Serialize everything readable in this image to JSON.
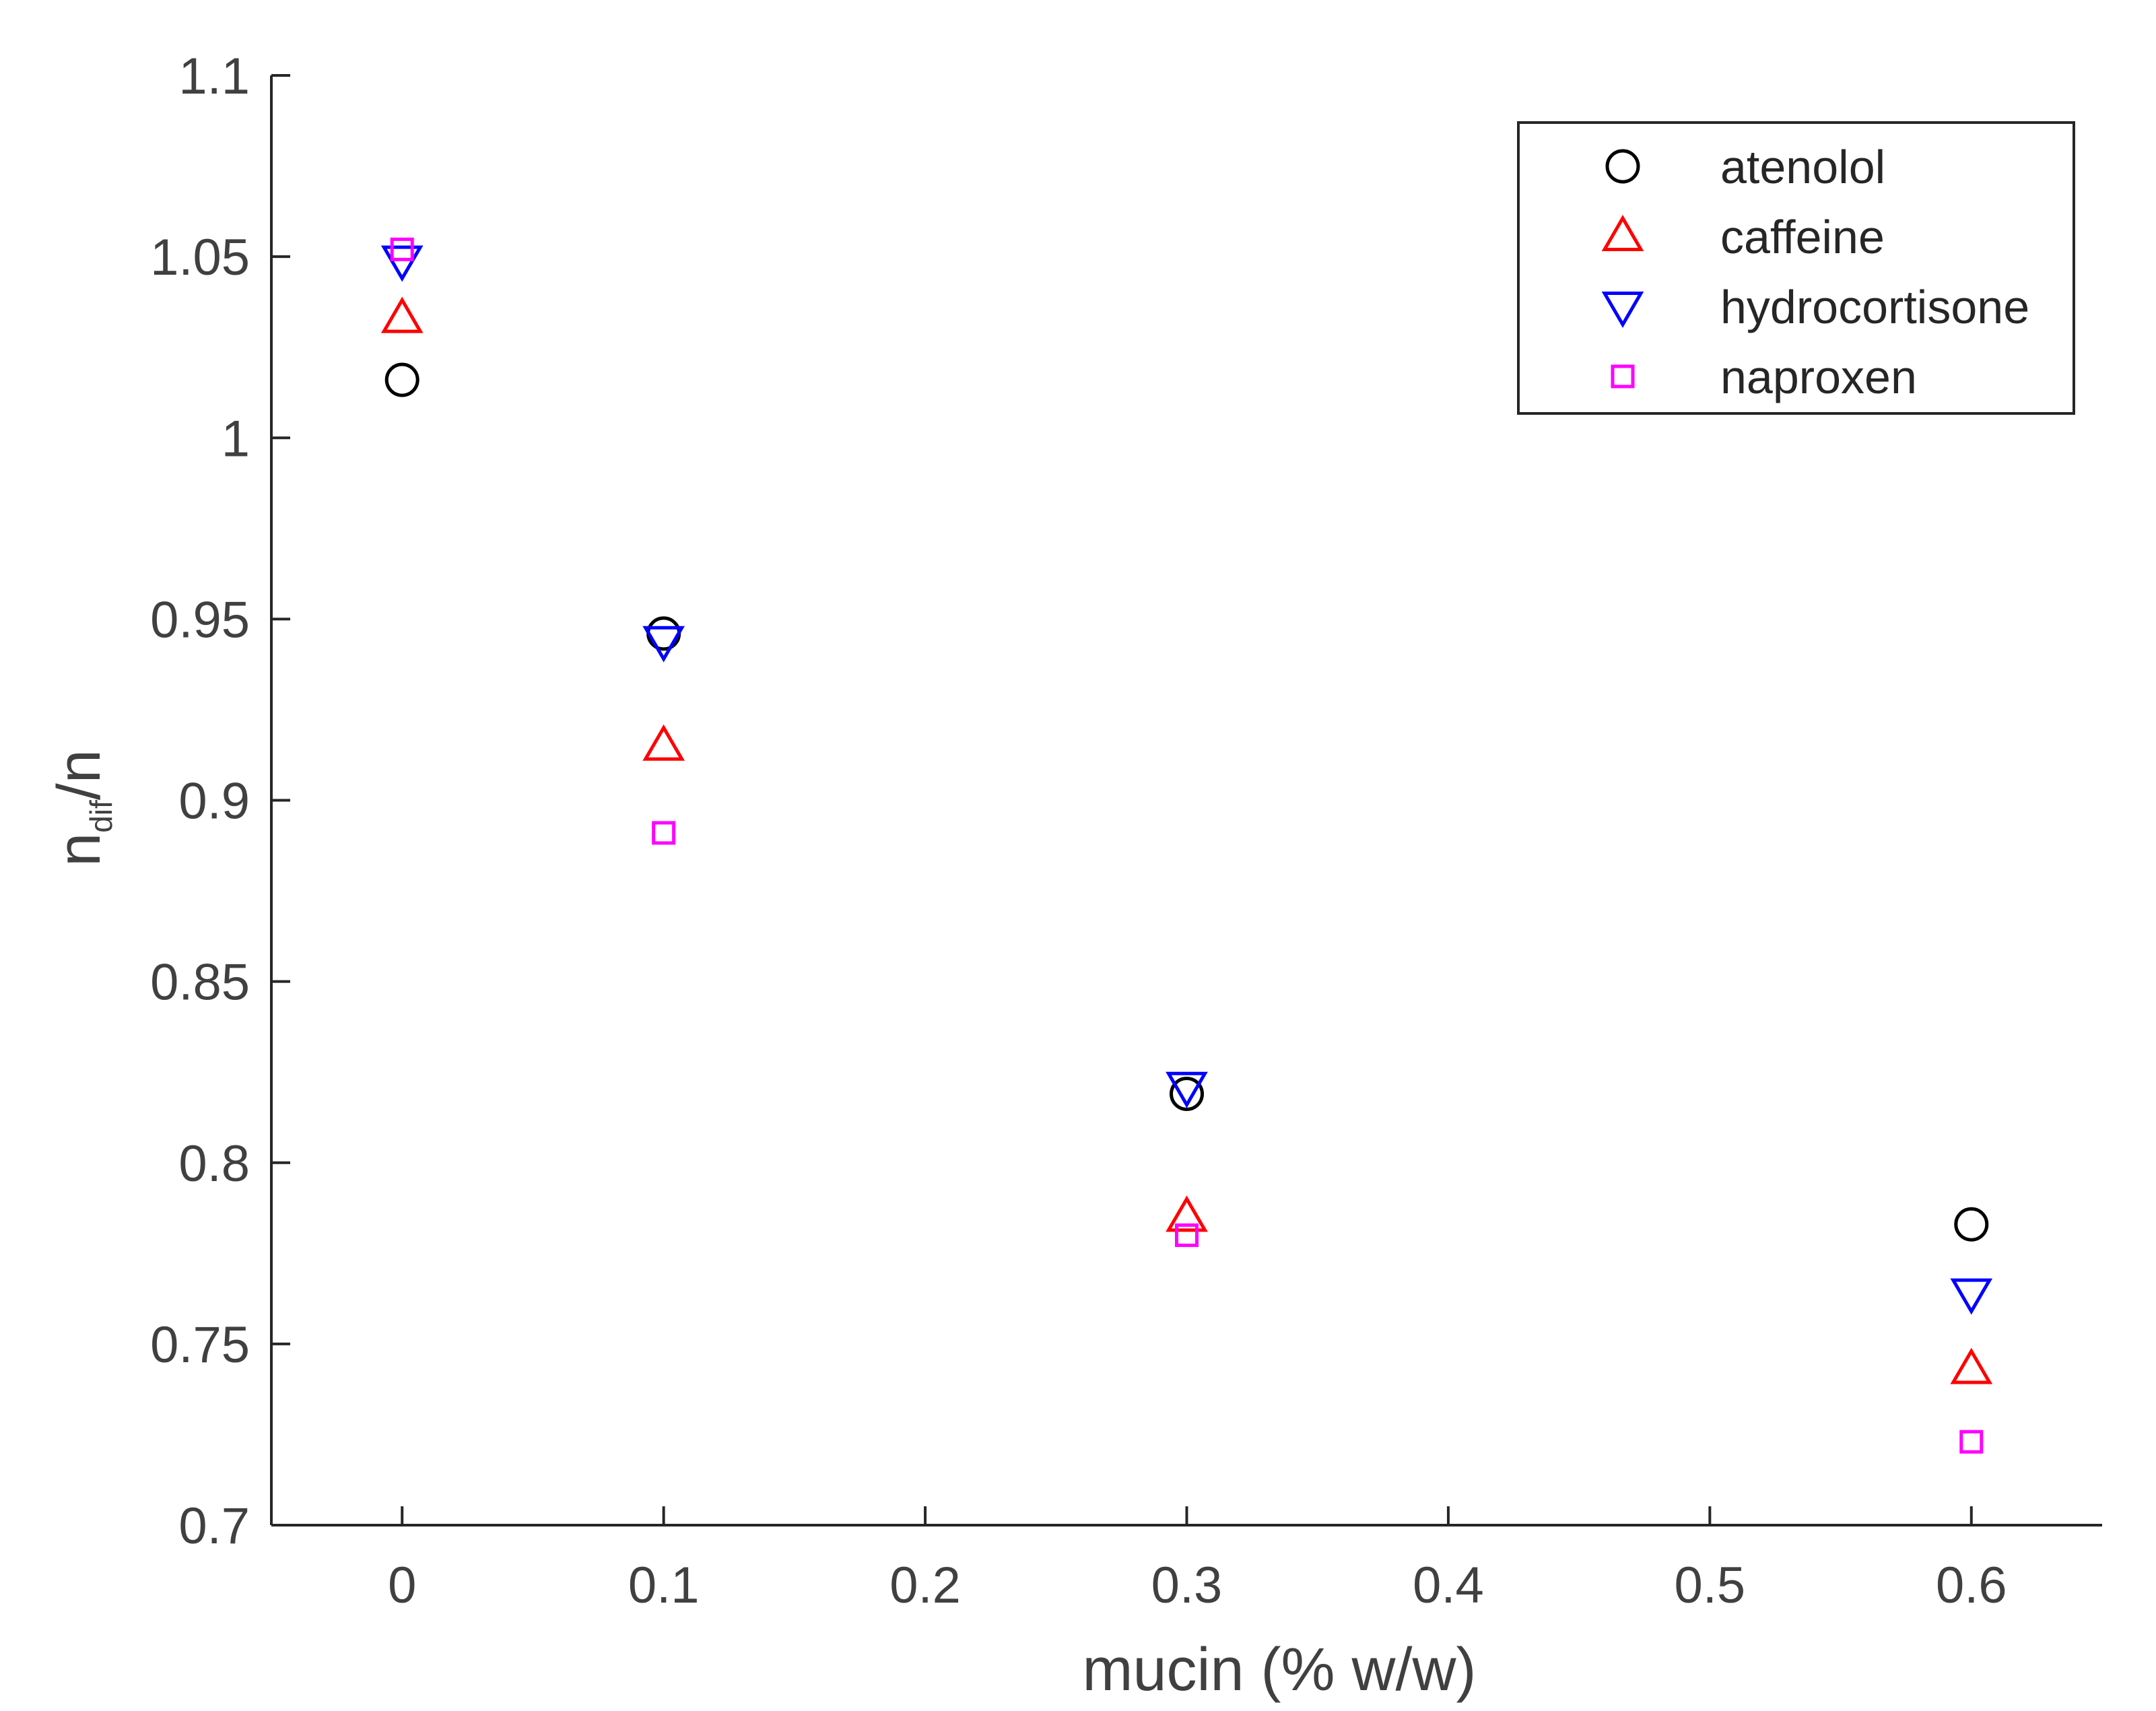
{
  "chart_data": {
    "type": "scatter",
    "title": "",
    "xlabel": "mucin (% w/w)",
    "ylabel": {
      "base": "n",
      "subscript": "dif",
      "suffix": "/n"
    },
    "xlim": [
      -0.05,
      0.65
    ],
    "ylim": [
      0.7,
      1.1
    ],
    "xticks": [
      0,
      0.1,
      0.2,
      0.3,
      0.4,
      0.5,
      0.6
    ],
    "xtick_labels": [
      "0",
      "0.1",
      "0.2",
      "0.3",
      "0.4",
      "0.5",
      "0.6"
    ],
    "yticks": [
      0.7,
      0.75,
      0.8,
      0.85,
      0.9,
      0.95,
      1.0,
      1.05,
      1.1
    ],
    "ytick_labels": [
      "0.7",
      "0.75",
      "0.8",
      "0.85",
      "0.9",
      "0.95",
      "1",
      "1.05",
      "1.1"
    ],
    "grid": false,
    "legend_position": "top-right",
    "x": [
      0,
      0.1,
      0.3,
      0.6
    ],
    "series": [
      {
        "name": "atenolol",
        "marker": "circle",
        "color": "#000000",
        "values": [
          1.016,
          0.946,
          0.819,
          0.783
        ]
      },
      {
        "name": "caffeine",
        "marker": "triangle-up",
        "color": "#ff0000",
        "values": [
          1.033,
          0.915,
          0.785,
          0.743
        ]
      },
      {
        "name": "hydrocortisone",
        "marker": "triangle-down",
        "color": "#0000ff",
        "values": [
          1.049,
          0.944,
          0.821,
          0.764
        ]
      },
      {
        "name": "naproxen",
        "marker": "square",
        "color": "#ff00ff",
        "values": [
          1.052,
          0.891,
          0.78,
          0.723
        ]
      }
    ]
  }
}
